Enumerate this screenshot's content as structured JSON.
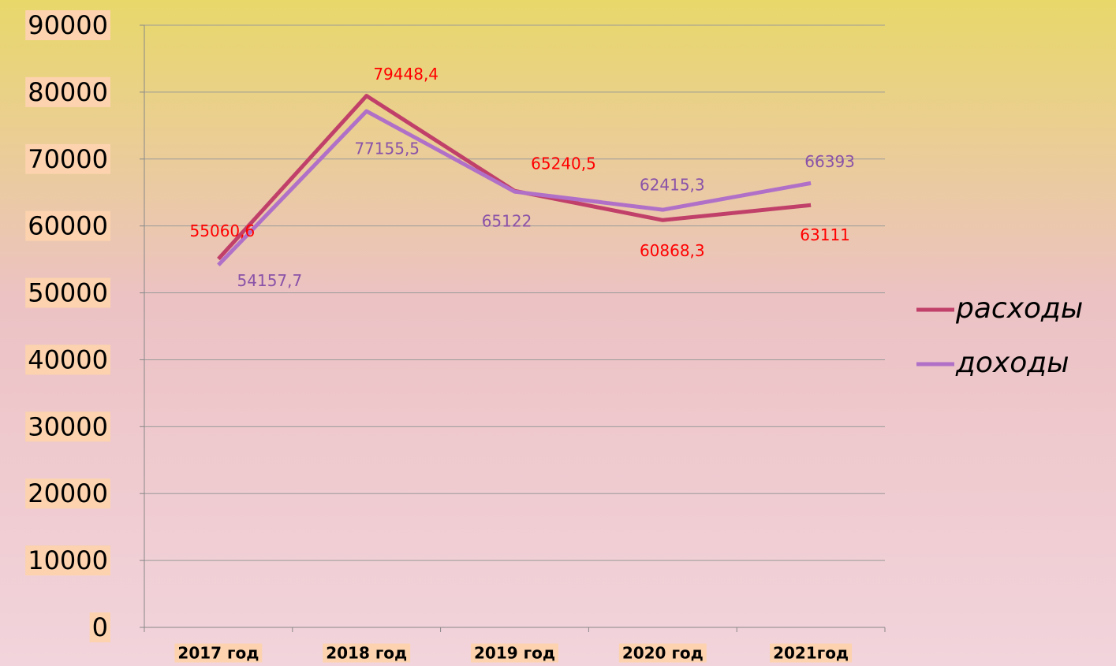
{
  "chart_data": {
    "type": "line",
    "categories": [
      "2017 год",
      "2018 год",
      "2019 год",
      "2020 год",
      "2021год"
    ],
    "series": [
      {
        "name": "расходы",
        "color": "#c0406a",
        "label_color": "#ff0000",
        "values": [
          55060.6,
          79448.4,
          65240.5,
          60868.3,
          63111
        ],
        "value_labels": [
          "55060,6",
          "79448,4",
          "65240,5",
          "60868,3",
          "63111"
        ]
      },
      {
        "name": "доходы",
        "color": "#b070c8",
        "label_color": "#8a52a8",
        "values": [
          54157.7,
          77155.5,
          65122,
          62415.3,
          66393
        ],
        "value_labels": [
          "54157,7",
          "77155,5",
          "65122",
          "62415,3",
          "66393"
        ]
      }
    ],
    "ylim": [
      0,
      90000
    ],
    "yticks": [
      0,
      10000,
      20000,
      30000,
      40000,
      50000,
      60000,
      70000,
      80000,
      90000
    ],
    "grid": true,
    "legend": "right"
  }
}
